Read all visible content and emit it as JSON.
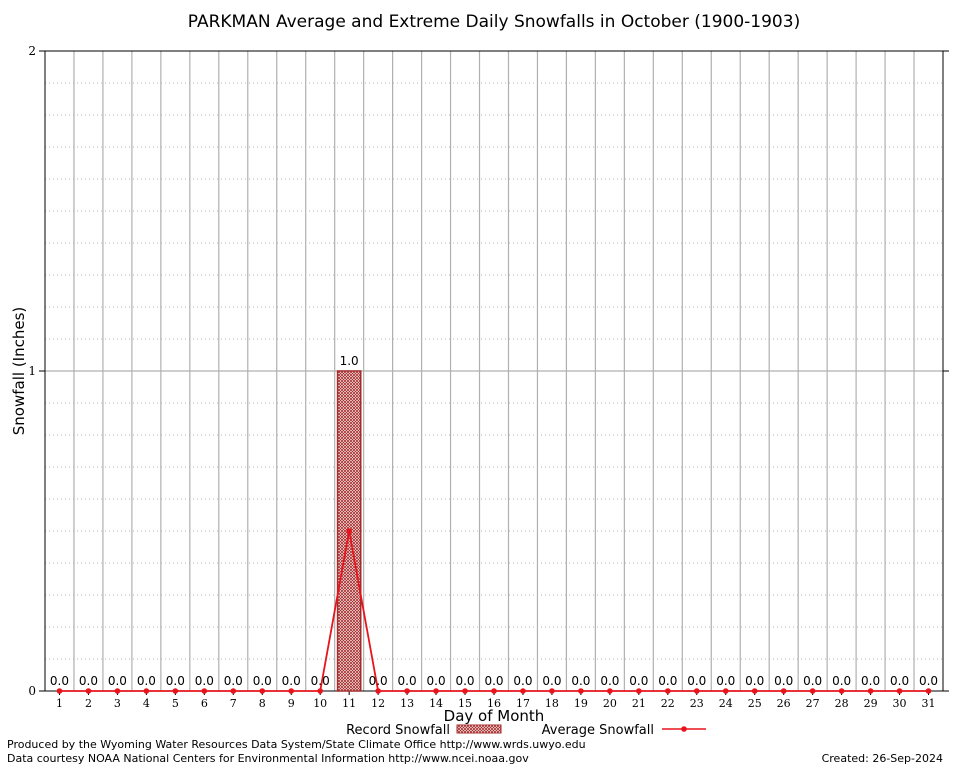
{
  "chart_data": {
    "type": "bar",
    "title": "PARKMAN Average and Extreme Daily Snowfalls in October (1900-1903)",
    "xlabel": "Day of Month",
    "ylabel": "Snowfall (Inches)",
    "ylim": [
      0,
      2
    ],
    "y_ticks": [
      "0",
      "1",
      "2"
    ],
    "categories": [
      "1",
      "2",
      "3",
      "4",
      "5",
      "6",
      "7",
      "8",
      "9",
      "10",
      "11",
      "12",
      "13",
      "14",
      "15",
      "16",
      "17",
      "18",
      "19",
      "20",
      "21",
      "22",
      "23",
      "24",
      "25",
      "26",
      "27",
      "28",
      "29",
      "30",
      "31"
    ],
    "series": [
      {
        "name": "Record Snowfall",
        "kind": "bar",
        "color": "#a52a2a",
        "values": [
          0,
          0,
          0,
          0,
          0,
          0,
          0,
          0,
          0,
          0,
          1.0,
          0,
          0,
          0,
          0,
          0,
          0,
          0,
          0,
          0,
          0,
          0,
          0,
          0,
          0,
          0,
          0,
          0,
          0,
          0,
          0
        ],
        "labels": [
          "0.0",
          "0.0",
          "0.0",
          "0.0",
          "0.0",
          "0.0",
          "0.0",
          "0.0",
          "0.0",
          "0.0",
          "1.0",
          "0.0",
          "0.0",
          "0.0",
          "0.0",
          "0.0",
          "0.0",
          "0.0",
          "0.0",
          "0.0",
          "0.0",
          "0.0",
          "0.0",
          "0.0",
          "0.0",
          "0.0",
          "0.0",
          "0.0",
          "0.0",
          "0.0",
          "0.0"
        ]
      },
      {
        "name": "Average Snowfall",
        "kind": "line",
        "color": "#e8141c",
        "values": [
          0,
          0,
          0,
          0,
          0,
          0,
          0,
          0,
          0,
          0,
          0.5,
          0,
          0,
          0,
          0,
          0,
          0,
          0,
          0,
          0,
          0,
          0,
          0,
          0,
          0,
          0,
          0,
          0,
          0,
          0,
          0
        ]
      }
    ],
    "grid": true,
    "legend_position": "bottom"
  },
  "footer": {
    "produced_by": "Produced by the Wyoming Water Resources Data System/State Climate Office http://www.wrds.uwyo.edu",
    "data_courtesy": "Data courtesy NOAA National Centers for Environmental Information http://www.ncei.noaa.gov",
    "created": "Created:  26-Sep-2024"
  }
}
